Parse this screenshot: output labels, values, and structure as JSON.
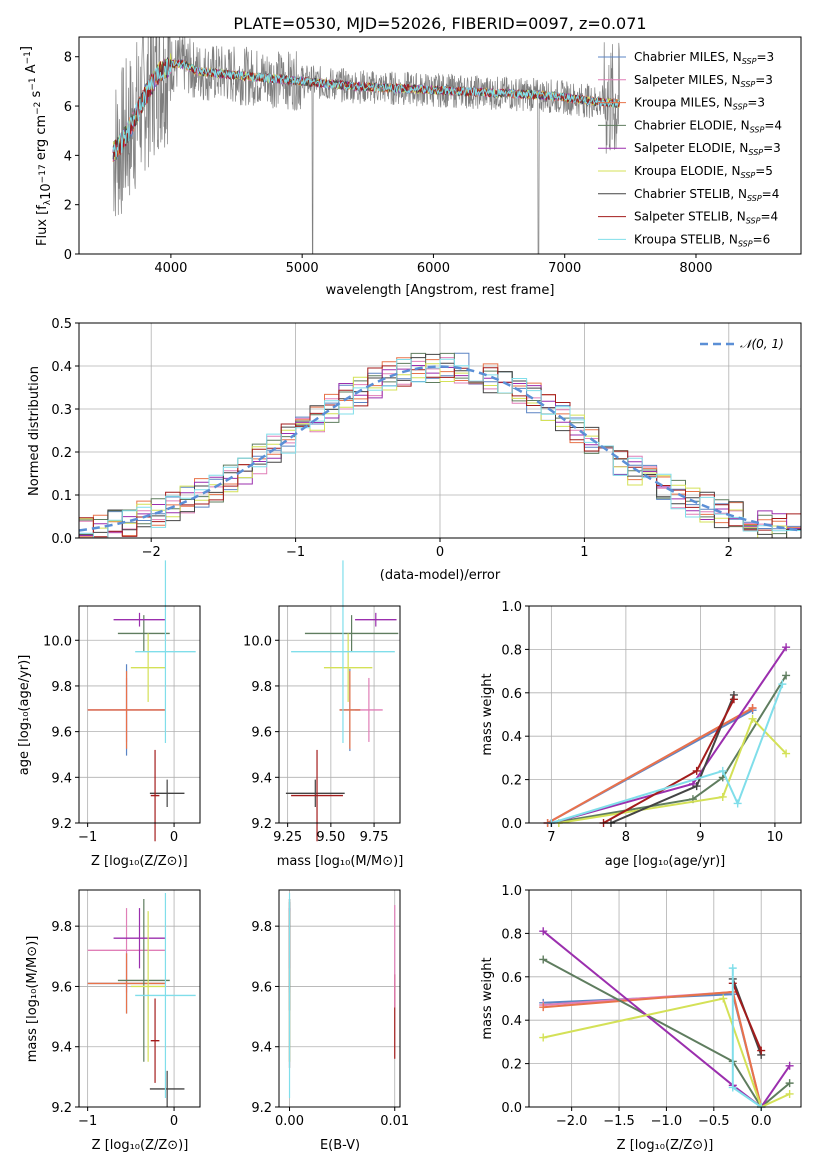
{
  "figure_title": "PLATE=0530, MJD=52026, FIBERID=0097, z=0.071",
  "chart_data": [
    {
      "id": "spectrum",
      "type": "line",
      "title": "PLATE=0530, MJD=52026, FIBERID=0097, z=0.071",
      "xlabel": "wavelength [Angstrom, rest frame]",
      "ylabel": "Flux [f_λ 10^-17 erg cm^-2 s^-1 A^-1]",
      "xlim": [
        3300,
        8800
      ],
      "ylim": [
        0,
        8.8
      ],
      "xticks": [
        4000,
        5000,
        6000,
        7000,
        8000
      ],
      "yticks": [
        0,
        2,
        4,
        6,
        8
      ],
      "grid": false,
      "legend_position": "top-right",
      "continuum_x": [
        3500,
        3600,
        3700,
        3800,
        3900,
        4000,
        4100,
        4200,
        4400,
        4600,
        4800,
        5000,
        5200,
        5400,
        5600,
        5800,
        6000,
        6200,
        6400,
        6600,
        6800,
        7000,
        7200,
        7400
      ],
      "continuum_y": [
        4.0,
        4.3,
        5.2,
        6.4,
        7.3,
        7.7,
        7.7,
        7.4,
        7.3,
        7.2,
        7.1,
        7.0,
        6.9,
        6.8,
        6.75,
        6.7,
        6.65,
        6.6,
        6.55,
        6.5,
        6.45,
        6.35,
        6.2,
        6.1
      ],
      "series": [
        {
          "name": "Chabrier MILES, N_SSP=3",
          "color": "#5b84c4"
        },
        {
          "name": "Salpeter MILES, N_SSP=3",
          "color": "#e07fb7"
        },
        {
          "name": "Kroupa MILES, N_SSP=3",
          "color": "#e8734a"
        },
        {
          "name": "Chabrier ELODIE, N_SSP=4",
          "color": "#5f7d5f"
        },
        {
          "name": "Salpeter ELODIE, N_SSP=3",
          "color": "#9b2fae"
        },
        {
          "name": "Kroupa ELODIE, N_SSP=5",
          "color": "#d4e157"
        },
        {
          "name": "Chabrier STELIB, N_SSP=4",
          "color": "#444444"
        },
        {
          "name": "Salpeter STELIB, N_SSP=4",
          "color": "#a31c1c"
        },
        {
          "name": "Kroupa STELIB, N_SSP=6",
          "color": "#80deea"
        }
      ]
    },
    {
      "id": "residuals",
      "type": "line",
      "xlabel": "(data-model)/error",
      "ylabel": "Normed distribution",
      "xlim": [
        -2.5,
        2.5
      ],
      "ylim": [
        0,
        0.5
      ],
      "xticks": [
        -2,
        -1,
        0,
        1,
        2
      ],
      "yticks": [
        0.0,
        0.1,
        0.2,
        0.3,
        0.4,
        0.5
      ],
      "grid": true,
      "legend_position": "top-right",
      "legend": [
        "𝒩(0, 1)"
      ],
      "gaussian": {
        "mu": 0,
        "sigma": 1,
        "color": "#5b8fd6"
      },
      "bin_width": 0.1
    },
    {
      "id": "age-vs-Z",
      "type": "scatter",
      "xlabel": "Z [log10(Z/Z⊙)]",
      "ylabel": "age [log10(age/yr)]",
      "xlim": [
        -1.1,
        0.3
      ],
      "ylim": [
        9.2,
        10.15
      ],
      "xticks": [
        -1,
        0
      ],
      "yticks": [
        9.2,
        9.4,
        9.6,
        9.8,
        10.0
      ],
      "grid": true,
      "points": [
        {
          "x": -0.55,
          "y": 9.695,
          "xerr": 0.45,
          "yerr": 0.2,
          "color": "#5b84c4"
        },
        {
          "x": -0.55,
          "y": 9.695,
          "xerr": 0.45,
          "yerr": 0.14,
          "color": "#e07fb7"
        },
        {
          "x": -0.55,
          "y": 9.695,
          "xerr": 0.45,
          "yerr": 0.17,
          "color": "#e8734a"
        },
        {
          "x": -0.35,
          "y": 10.03,
          "xerr": 0.3,
          "yerr": 0.08,
          "color": "#5f7d5f"
        },
        {
          "x": -0.4,
          "y": 10.09,
          "xerr": 0.3,
          "yerr": 0.03,
          "color": "#9b2fae"
        },
        {
          "x": -0.3,
          "y": 9.88,
          "xerr": 0.2,
          "yerr": 0.15,
          "color": "#d4e157"
        },
        {
          "x": -0.08,
          "y": 9.33,
          "xerr": 0.2,
          "yerr": 0.06,
          "color": "#444444"
        },
        {
          "x": -0.22,
          "y": 9.32,
          "xerr": 0.05,
          "yerr": 0.2,
          "color": "#a31c1c"
        },
        {
          "x": -0.1,
          "y": 9.95,
          "xerr": 0.35,
          "yerr": 0.4,
          "color": "#80deea"
        }
      ]
    },
    {
      "id": "age-vs-mass",
      "type": "scatter",
      "xlabel": "mass [log10(M/M⊙)]",
      "ylabel": "",
      "xlim": [
        9.2,
        9.9
      ],
      "ylim": [
        9.2,
        10.15
      ],
      "xticks": [
        9.25,
        9.5,
        9.75
      ],
      "yticks": [
        9.2,
        9.4,
        9.6,
        9.8,
        10.0
      ],
      "grid": true,
      "points": [
        {
          "x": 9.61,
          "y": 9.695,
          "xerr": 0.06,
          "yerr": 0.18,
          "color": "#5b84c4"
        },
        {
          "x": 9.72,
          "y": 9.695,
          "xerr": 0.08,
          "yerr": 0.14,
          "color": "#e07fb7"
        },
        {
          "x": 9.61,
          "y": 9.695,
          "xerr": 0.06,
          "yerr": 0.17,
          "color": "#e8734a"
        },
        {
          "x": 9.62,
          "y": 10.03,
          "xerr": 0.27,
          "yerr": 0.08,
          "color": "#5f7d5f"
        },
        {
          "x": 9.76,
          "y": 10.09,
          "xerr": 0.12,
          "yerr": 0.03,
          "color": "#9b2fae"
        },
        {
          "x": 9.6,
          "y": 9.88,
          "xerr": 0.14,
          "yerr": 0.15,
          "color": "#d4e157"
        },
        {
          "x": 9.41,
          "y": 9.33,
          "xerr": 0.17,
          "yerr": 0.06,
          "color": "#444444"
        },
        {
          "x": 9.42,
          "y": 9.32,
          "xerr": 0.15,
          "yerr": 0.2,
          "color": "#a31c1c"
        },
        {
          "x": 9.57,
          "y": 9.95,
          "xerr": 0.3,
          "yerr": 0.4,
          "color": "#80deea"
        }
      ]
    },
    {
      "id": "mass-weight-vs-age",
      "type": "line",
      "xlabel": "age [log10(age/yr)]",
      "ylabel": "mass weight",
      "xlim": [
        6.7,
        10.35
      ],
      "ylim": [
        0,
        1.0
      ],
      "xticks": [
        7,
        8,
        9,
        10
      ],
      "yticks": [
        0.0,
        0.2,
        0.4,
        0.6,
        0.8,
        1.0
      ],
      "grid": true,
      "series": [
        {
          "color": "#5b84c4",
          "x": [
            6.95,
            9.7
          ],
          "y": [
            0.0,
            0.52
          ]
        },
        {
          "color": "#e07fb7",
          "x": [
            6.95,
            9.7
          ],
          "y": [
            0.0,
            0.53
          ]
        },
        {
          "color": "#e8734a",
          "x": [
            6.95,
            9.7
          ],
          "y": [
            0.0,
            0.53
          ]
        },
        {
          "color": "#5f7d5f",
          "x": [
            7.0,
            8.9,
            9.3,
            10.15
          ],
          "y": [
            0.0,
            0.11,
            0.21,
            0.68
          ]
        },
        {
          "color": "#9b2fae",
          "x": [
            7.0,
            8.9,
            10.15
          ],
          "y": [
            0.0,
            0.18,
            0.81
          ]
        },
        {
          "color": "#d4e157",
          "x": [
            7.1,
            9.3,
            9.7,
            10.15
          ],
          "y": [
            0.0,
            0.12,
            0.48,
            0.32
          ]
        },
        {
          "color": "#444444",
          "x": [
            7.8,
            8.95,
            9.45
          ],
          "y": [
            0.0,
            0.17,
            0.59
          ]
        },
        {
          "color": "#a31c1c",
          "x": [
            7.7,
            8.95,
            9.45
          ],
          "y": [
            0.0,
            0.24,
            0.57
          ]
        },
        {
          "color": "#80deea",
          "x": [
            7.0,
            9.3,
            9.5,
            10.1
          ],
          "y": [
            0.0,
            0.24,
            0.09,
            0.64
          ]
        }
      ]
    },
    {
      "id": "mass-vs-Z",
      "type": "scatter",
      "xlabel": "Z [log10(Z/Z⊙)]",
      "ylabel": "mass [log10(M/M⊙)]",
      "xlim": [
        -1.1,
        0.3
      ],
      "ylim": [
        9.2,
        9.92
      ],
      "xticks": [
        -1,
        0
      ],
      "yticks": [
        9.2,
        9.4,
        9.6,
        9.8
      ],
      "grid": true,
      "points": [
        {
          "x": -0.55,
          "y": 9.61,
          "xerr": 0.45,
          "yerr": 0.1,
          "color": "#5b84c4"
        },
        {
          "x": -0.55,
          "y": 9.72,
          "xerr": 0.45,
          "yerr": 0.14,
          "color": "#e07fb7"
        },
        {
          "x": -0.55,
          "y": 9.61,
          "xerr": 0.45,
          "yerr": 0.1,
          "color": "#e8734a"
        },
        {
          "x": -0.35,
          "y": 9.62,
          "xerr": 0.3,
          "yerr": 0.27,
          "color": "#5f7d5f"
        },
        {
          "x": -0.4,
          "y": 9.76,
          "xerr": 0.3,
          "yerr": 0.1,
          "color": "#9b2fae"
        },
        {
          "x": -0.3,
          "y": 9.6,
          "xerr": 0.2,
          "yerr": 0.25,
          "color": "#d4e157"
        },
        {
          "x": -0.08,
          "y": 9.26,
          "xerr": 0.2,
          "yerr": 0.06,
          "color": "#444444"
        },
        {
          "x": -0.22,
          "y": 9.42,
          "xerr": 0.05,
          "yerr": 0.14,
          "color": "#a31c1c"
        },
        {
          "x": -0.1,
          "y": 9.57,
          "xerr": 0.35,
          "yerr": 0.34,
          "color": "#80deea"
        }
      ]
    },
    {
      "id": "mass-vs-EBV",
      "type": "scatter",
      "xlabel": "E(B-V)",
      "ylabel": "",
      "xlim": [
        -0.001,
        0.0105
      ],
      "ylim": [
        9.2,
        9.92
      ],
      "xticks": [
        0.0,
        0.01
      ],
      "yticks": [
        9.2,
        9.4,
        9.6,
        9.8
      ],
      "grid": true,
      "points": [
        {
          "x": 0.0,
          "y": 9.61,
          "yerr": 0.28,
          "color": "#5b84c4"
        },
        {
          "x": 0.0,
          "y": 9.72,
          "yerr": 0.14,
          "color": "#e07fb7"
        },
        {
          "x": 0.0,
          "y": 9.61,
          "yerr": 0.28,
          "color": "#e8734a"
        },
        {
          "x": 0.0,
          "y": 9.62,
          "yerr": 0.27,
          "color": "#5f7d5f"
        },
        {
          "x": 0.0,
          "y": 9.76,
          "yerr": 0.1,
          "color": "#9b2fae"
        },
        {
          "x": 0.0,
          "y": 9.6,
          "yerr": 0.25,
          "color": "#d4e157"
        },
        {
          "x": 0.0,
          "y": 9.7,
          "yerr": 0.18,
          "color": "#444444"
        },
        {
          "x": 0.01,
          "y": 9.5,
          "yerr": 0.14,
          "color": "#a31c1c"
        },
        {
          "x": 0.0,
          "y": 9.57,
          "yerr": 0.34,
          "color": "#80deea"
        },
        {
          "x": 0.01,
          "y": 9.7,
          "yerr": 0.17,
          "color": "#e07fb7"
        }
      ]
    },
    {
      "id": "mass-weight-vs-Z",
      "type": "line",
      "xlabel": "Z [log10(Z/Z⊙)]",
      "ylabel": "mass weight",
      "xlim": [
        -2.45,
        0.42
      ],
      "ylim": [
        0,
        1.0
      ],
      "xticks": [
        -2.0,
        -1.5,
        -1.0,
        -0.5,
        0.0
      ],
      "yticks": [
        0.0,
        0.2,
        0.4,
        0.6,
        0.8,
        1.0
      ],
      "grid": true,
      "series": [
        {
          "color": "#5b84c4",
          "x": [
            -2.3,
            -0.3,
            0.0
          ],
          "y": [
            0.48,
            0.52,
            0.0
          ]
        },
        {
          "color": "#e07fb7",
          "x": [
            -2.3,
            -0.3,
            0.0
          ],
          "y": [
            0.47,
            0.53,
            0.0
          ]
        },
        {
          "color": "#e8734a",
          "x": [
            -2.3,
            -0.3,
            0.0
          ],
          "y": [
            0.46,
            0.53,
            0.0
          ]
        },
        {
          "color": "#5f7d5f",
          "x": [
            -2.3,
            -0.3,
            0.0,
            0.3
          ],
          "y": [
            0.68,
            0.21,
            0.0,
            0.11
          ]
        },
        {
          "color": "#9b2fae",
          "x": [
            -2.3,
            -0.3,
            0.0,
            0.3
          ],
          "y": [
            0.81,
            0.1,
            0.0,
            0.19
          ]
        },
        {
          "color": "#d4e157",
          "x": [
            -2.3,
            -0.4,
            0.0,
            0.3
          ],
          "y": [
            0.32,
            0.5,
            0.0,
            0.06
          ]
        },
        {
          "color": "#444444",
          "x": [
            -0.3,
            0.0
          ],
          "y": [
            0.59,
            0.24
          ]
        },
        {
          "color": "#a31c1c",
          "x": [
            -0.3,
            0.0
          ],
          "y": [
            0.57,
            0.26
          ]
        },
        {
          "color": "#80deea",
          "x": [
            -0.3,
            -0.3,
            0.0
          ],
          "y": [
            0.64,
            0.09,
            0.0
          ]
        }
      ]
    }
  ]
}
